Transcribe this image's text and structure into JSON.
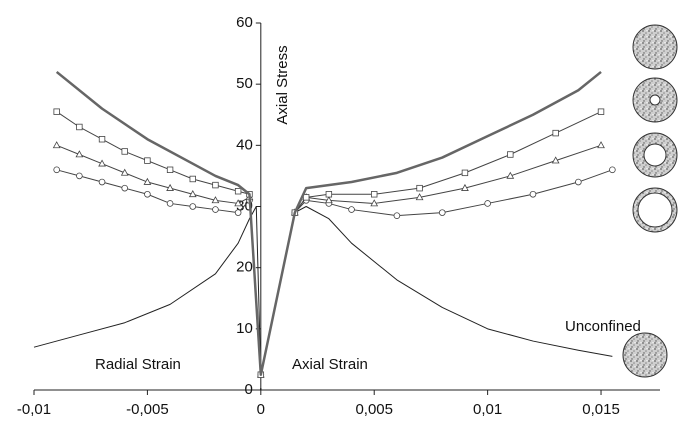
{
  "chart_data": {
    "type": "line",
    "y_label": "Axial Stress",
    "annotations": [
      "Radial Strain",
      "Axial Strain",
      "Unconfined"
    ],
    "xlim": [
      -0.01,
      0.0176
    ],
    "ylim": [
      0,
      60
    ],
    "xticks": [
      {
        "value": -0.01,
        "label": "-0,01"
      },
      {
        "value": -0.005,
        "label": "-0,005"
      },
      0,
      {
        "value": 0.005,
        "label": "0,005"
      },
      {
        "value": 0.01,
        "label": "0,01"
      },
      {
        "value": 0.015,
        "label": "0,015"
      }
    ],
    "yticks": [
      0,
      10,
      20,
      30,
      40,
      50,
      60
    ],
    "series": [
      {
        "color": "#666666",
        "width": 2.5,
        "marker": "none",
        "x": [
          -0.009,
          -0.007,
          -0.005,
          -0.003,
          -0.002,
          -0.001,
          -0.0005,
          0,
          0.0015,
          0.002,
          0.004,
          0.006,
          0.008,
          0.01,
          0.012,
          0.014,
          0.015
        ],
        "values": [
          52,
          46,
          41,
          37,
          35,
          33.5,
          32,
          2.5,
          29,
          33,
          34,
          35.5,
          38,
          41.5,
          45,
          49,
          52
        ]
      },
      {
        "color": "#444444",
        "width": 1,
        "marker": "square",
        "x": [
          -0.009,
          -0.008,
          -0.007,
          -0.006,
          -0.005,
          -0.004,
          -0.003,
          -0.002,
          -0.001,
          -0.0005,
          0,
          0.0015,
          0.002,
          0.003,
          0.005,
          0.007,
          0.009,
          0.011,
          0.013,
          0.015
        ],
        "values": [
          45.5,
          43,
          41,
          39,
          37.5,
          36,
          34.5,
          33.5,
          32.5,
          32,
          2.5,
          29,
          31.5,
          32,
          32,
          33,
          35.5,
          38.5,
          42,
          45.5
        ]
      },
      {
        "color": "#444444",
        "width": 1,
        "marker": "triangle",
        "x": [
          -0.009,
          -0.008,
          -0.007,
          -0.006,
          -0.005,
          -0.004,
          -0.003,
          -0.002,
          -0.001,
          -0.0005,
          0,
          0.0015,
          0.002,
          0.003,
          0.005,
          0.007,
          0.009,
          0.011,
          0.013,
          0.015
        ],
        "values": [
          40,
          38.5,
          37,
          35.5,
          34,
          33,
          32,
          31,
          30.5,
          31.5,
          2.5,
          29,
          31.5,
          31,
          30.5,
          31.5,
          33,
          35,
          37.5,
          40
        ]
      },
      {
        "color": "#444444",
        "width": 1,
        "marker": "circle",
        "x": [
          -0.009,
          -0.008,
          -0.007,
          -0.006,
          -0.005,
          -0.004,
          -0.003,
          -0.002,
          -0.001,
          -0.0005,
          0,
          0.0015,
          0.002,
          0.003,
          0.004,
          0.006,
          0.008,
          0.01,
          0.012,
          0.014,
          0.0155
        ],
        "values": [
          36,
          35,
          34,
          33,
          32,
          30.5,
          30,
          29.5,
          29,
          31,
          2.5,
          29,
          31,
          30.5,
          29.5,
          28.5,
          29,
          30.5,
          32,
          34,
          36
        ]
      },
      {
        "color": "#222222",
        "width": 1,
        "marker": "none",
        "x": [
          -0.01,
          -0.008,
          -0.006,
          -0.004,
          -0.002,
          -0.001,
          -0.0005,
          -0.0002,
          0,
          0.0015,
          0.002,
          0.003,
          0.004,
          0.006,
          0.008,
          0.01,
          0.012,
          0.014,
          0.0155
        ],
        "values": [
          7,
          9,
          11,
          14,
          19,
          24,
          28,
          30,
          2.5,
          29,
          30,
          28,
          24,
          18,
          13.5,
          10,
          8,
          6.5,
          5.5
        ]
      }
    ]
  }
}
